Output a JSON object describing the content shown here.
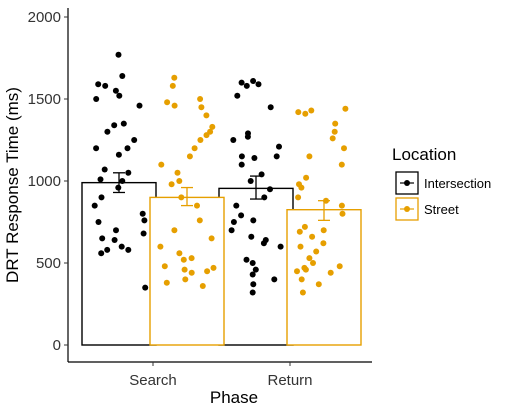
{
  "chart_data": {
    "type": "bar",
    "xlabel": "Phase",
    "ylabel": "DRT Response Time (ms)",
    "ylim": [
      0,
      2000
    ],
    "yticks": [
      0,
      500,
      1000,
      1500,
      2000
    ],
    "categories": [
      "Search",
      "Return"
    ],
    "legend": {
      "title": "Location",
      "placement": "right"
    },
    "grid": false,
    "series": [
      {
        "name": "Intersection",
        "color": "#000000",
        "means": [
          990,
          955
        ],
        "error": [
          [
            930,
            1050
          ],
          [
            890,
            1030
          ]
        ],
        "points": [
          [
            1770,
            1640,
            1590,
            1580,
            1550,
            1520,
            1500,
            1460,
            1350,
            1340,
            1300,
            1250,
            1200,
            1200,
            1160,
            1070,
            1050,
            1010,
            1000,
            960,
            900,
            850,
            800,
            760,
            750,
            700,
            680,
            650,
            640,
            600,
            580,
            580,
            560,
            350
          ],
          [
            1610,
            1600,
            1590,
            1580,
            1520,
            1450,
            1290,
            1270,
            1250,
            1210,
            1150,
            1150,
            1140,
            1100,
            1040,
            1000,
            950,
            900,
            850,
            790,
            760,
            750,
            700,
            660,
            640,
            620,
            600,
            520,
            500,
            460,
            430,
            400,
            370,
            320
          ]
        ]
      },
      {
        "name": "Street",
        "color": "#E69F00",
        "means": [
          900,
          825
        ],
        "error": [
          [
            850,
            960
          ],
          [
            760,
            880
          ]
        ],
        "points": [
          [
            1630,
            1580,
            1500,
            1480,
            1460,
            1450,
            1400,
            1330,
            1300,
            1280,
            1250,
            1200,
            1150,
            1100,
            1050,
            1000,
            980,
            900,
            850,
            760,
            700,
            650,
            600,
            560,
            530,
            520,
            480,
            470,
            460,
            450,
            440,
            400,
            380,
            360
          ],
          [
            1440,
            1430,
            1420,
            1410,
            1350,
            1300,
            1260,
            1200,
            1150,
            1100,
            1020,
            980,
            960,
            900,
            880,
            850,
            800,
            720,
            700,
            690,
            660,
            620,
            600,
            570,
            530,
            500,
            480,
            470,
            460,
            450,
            440,
            400,
            370,
            320
          ]
        ]
      }
    ]
  }
}
